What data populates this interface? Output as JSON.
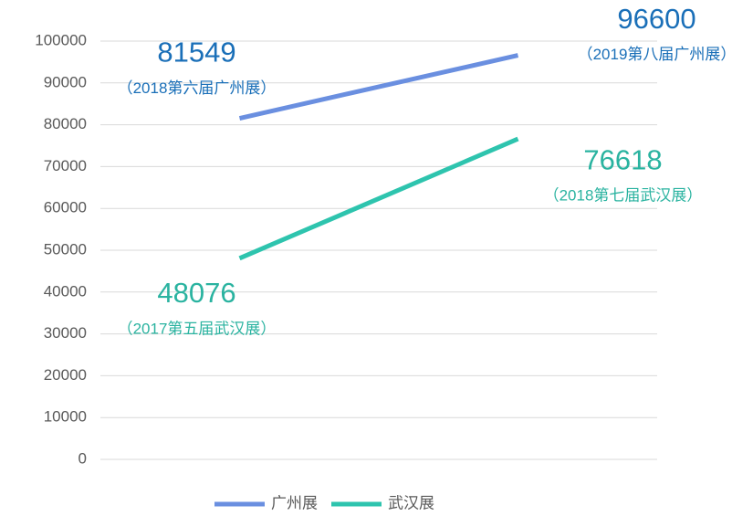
{
  "chart_data": {
    "type": "line",
    "categories": [
      null,
      null
    ],
    "series": [
      {
        "name": "广州展",
        "color": "#6a8fe0",
        "label_color": "#1a6fb8",
        "values": [
          81549,
          96600
        ],
        "point_labels": [
          "（2018第六届广州展）",
          "（2019第八届广州展）"
        ]
      },
      {
        "name": "武汉展",
        "color": "#2ec4ae",
        "label_color": "#2ab3a0",
        "values": [
          48076,
          76618
        ],
        "point_labels": [
          "（2017第五届武汉展）",
          "（2018第七届武汉展）"
        ]
      }
    ],
    "ylim": [
      0,
      100000
    ],
    "yticks": [
      0,
      10000,
      20000,
      30000,
      40000,
      50000,
      60000,
      70000,
      80000,
      90000,
      100000
    ],
    "grid": true,
    "legend": "bottom"
  }
}
